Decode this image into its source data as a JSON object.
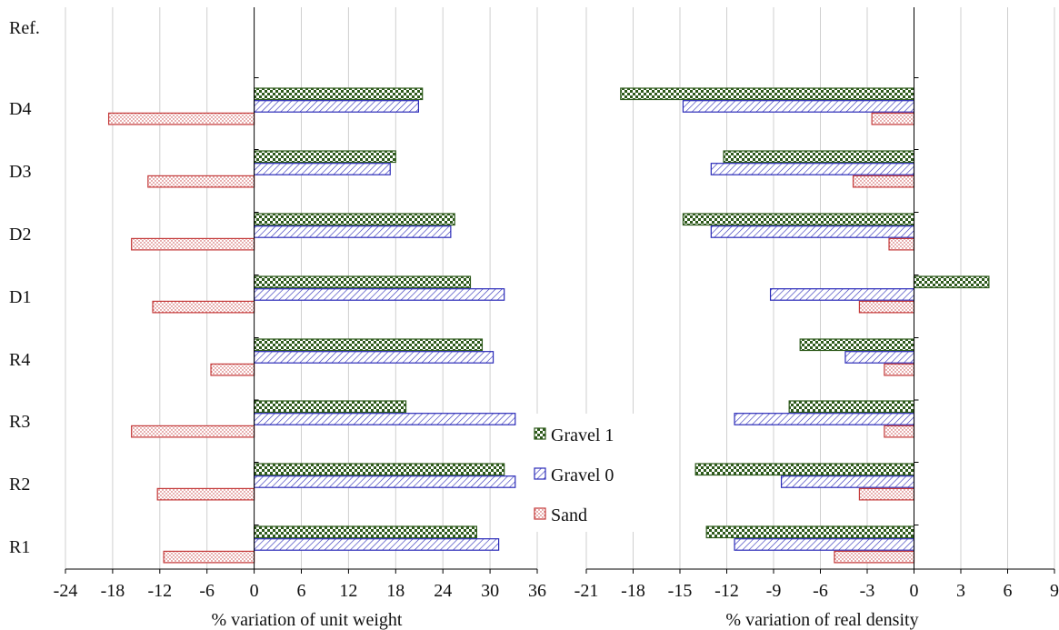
{
  "chart_data": [
    {
      "type": "bar",
      "orientation": "horizontal",
      "categories": [
        "R1",
        "R2",
        "R3",
        "R4",
        "D1",
        "D2",
        "D3",
        "D4",
        "Ref."
      ],
      "xlabel": "% variation  of unit weight",
      "xlim": [
        -24,
        36
      ],
      "xticks": [
        "-24",
        "-18",
        "-12",
        "-6",
        "0",
        "6",
        "12",
        "18",
        "24",
        "30",
        "36"
      ],
      "grid": true,
      "series": [
        {
          "name": "Gravel 1",
          "values": [
            28.3,
            31.8,
            19.3,
            29.0,
            27.5,
            25.5,
            18.0,
            21.4,
            0
          ]
        },
        {
          "name": "Gravel 0",
          "values": [
            31.1,
            33.2,
            33.2,
            30.4,
            31.8,
            25.0,
            17.3,
            20.9,
            0
          ]
        },
        {
          "name": "Sand",
          "values": [
            -11.5,
            -12.3,
            -15.6,
            -5.5,
            -12.9,
            -15.6,
            -13.5,
            -18.5,
            0
          ]
        }
      ]
    },
    {
      "type": "bar",
      "orientation": "horizontal",
      "categories": [
        "R1",
        "R2",
        "R3",
        "R4",
        "D1",
        "D2",
        "D3",
        "D4",
        "Ref."
      ],
      "xlabel": "% variation  of real density",
      "xlim": [
        -21,
        9
      ],
      "xticks": [
        "-21",
        "-18",
        "-15",
        "-12",
        "-9",
        "-6",
        "-3",
        "0",
        "3",
        "6",
        "9"
      ],
      "grid": true,
      "series": [
        {
          "name": "Gravel 1",
          "values": [
            -13.3,
            -14.0,
            -8.0,
            -7.3,
            4.8,
            -14.8,
            -12.2,
            -18.8,
            0
          ]
        },
        {
          "name": "Gravel 0",
          "values": [
            -11.5,
            -8.5,
            -11.5,
            -4.4,
            -9.2,
            -13.0,
            -13.0,
            -14.8,
            0
          ]
        },
        {
          "name": "Sand",
          "values": [
            -5.1,
            -3.5,
            -1.9,
            -1.9,
            -3.5,
            -1.6,
            -3.9,
            -2.7,
            0
          ]
        }
      ]
    }
  ],
  "legend": {
    "position": "center",
    "items": [
      {
        "label": "Gravel 1",
        "pattern": "checker",
        "color": "#2e5a1c"
      },
      {
        "label": "Gravel 0",
        "pattern": "hatch",
        "color": "#2a2ab8"
      },
      {
        "label": "Sand",
        "pattern": "dots",
        "color": "#c43a3a"
      }
    ]
  }
}
